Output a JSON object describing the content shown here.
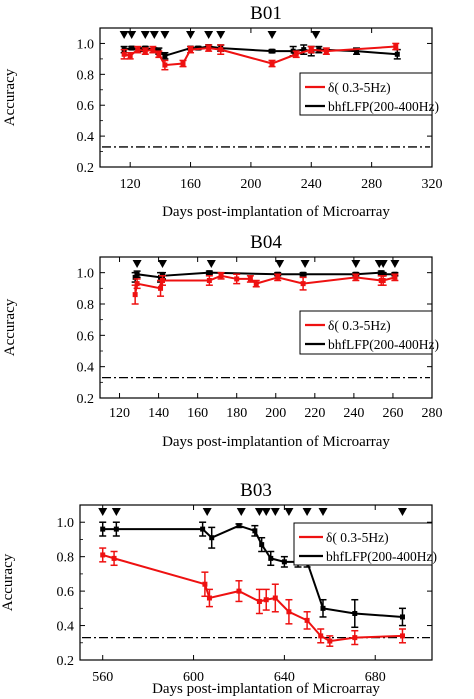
{
  "chart_data": [
    {
      "type": "line",
      "title": "B01",
      "xlabel": "Days post-implantation of Microarray",
      "ylabel": "Accuracy",
      "xlim": [
        100,
        320
      ],
      "ylim": [
        0.2,
        1.1
      ],
      "xticks": [
        120,
        160,
        200,
        240,
        280,
        320
      ],
      "yticks": [
        0.2,
        0.4,
        0.6,
        0.8,
        1.0
      ],
      "chance_level": 0.33,
      "legend": {
        "placement": "right-middle",
        "entries": [
          "δ(  0.3-5Hz)",
          "bhfLFP(200-400Hz)"
        ]
      },
      "markers_x": [
        116,
        121,
        130,
        136,
        143,
        160,
        172,
        180,
        214,
        243
      ],
      "series": [
        {
          "name": "δ(  0.3-5Hz)",
          "color": "#ee1111",
          "x": [
            116,
            120,
            125,
            130,
            135,
            139,
            143,
            155,
            160,
            172,
            180,
            214,
            230,
            240,
            250,
            296
          ],
          "y": [
            0.93,
            0.92,
            0.96,
            0.95,
            0.96,
            0.93,
            0.86,
            0.87,
            0.96,
            0.97,
            0.96,
            0.87,
            0.93,
            0.96,
            0.95,
            0.98
          ],
          "err": [
            0.03,
            0.02,
            0.02,
            0.02,
            0.02,
            0.02,
            0.03,
            0.02,
            0.02,
            0.02,
            0.03,
            0.02,
            0.02,
            0.02,
            0.02,
            0.02
          ]
        },
        {
          "name": "bhfLFP(200-400Hz)",
          "color": "#000000",
          "x": [
            116,
            121,
            127,
            130,
            136,
            139,
            143,
            160,
            165,
            172,
            180,
            214,
            228,
            235,
            240,
            245,
            270,
            297
          ],
          "y": [
            0.96,
            0.97,
            0.96,
            0.97,
            0.96,
            0.95,
            0.92,
            0.97,
            0.97,
            0.98,
            0.97,
            0.95,
            0.95,
            0.96,
            0.95,
            0.96,
            0.95,
            0.93
          ],
          "err": [
            0.02,
            0.01,
            0.01,
            0.01,
            0.01,
            0.02,
            0.02,
            0.01,
            0.01,
            0.01,
            0.02,
            0.01,
            0.03,
            0.03,
            0.03,
            0.02,
            0.02,
            0.03
          ]
        }
      ]
    },
    {
      "type": "line",
      "title": "B04",
      "xlabel": "Days post-implatantion of Microarray",
      "ylabel": "Accuracy",
      "xlim": [
        110,
        280
      ],
      "ylim": [
        0.2,
        1.1
      ],
      "xticks": [
        120,
        140,
        160,
        180,
        200,
        220,
        240,
        260,
        280
      ],
      "yticks": [
        0.2,
        0.4,
        0.6,
        0.8,
        1.0
      ],
      "chance_level": 0.33,
      "legend": {
        "placement": "right-middle",
        "entries": [
          "δ(  0.3-5Hz)",
          "bhfLFP(200-400Hz)"
        ]
      },
      "markers_x": [
        129,
        142,
        167,
        202,
        215,
        241,
        253,
        255,
        261
      ],
      "series": [
        {
          "name": "δ(  0.3-5Hz)",
          "color": "#ee1111",
          "x": [
            128,
            129,
            141,
            142,
            166,
            172,
            180,
            187,
            190,
            201,
            214,
            241,
            254,
            255,
            261
          ],
          "y": [
            0.86,
            0.93,
            0.9,
            0.95,
            0.95,
            0.98,
            0.96,
            0.96,
            0.93,
            0.97,
            0.93,
            0.97,
            0.95,
            0.95,
            0.97
          ],
          "err": [
            0.06,
            0.03,
            0.05,
            0.03,
            0.03,
            0.02,
            0.03,
            0.02,
            0.02,
            0.02,
            0.04,
            0.02,
            0.03,
            0.03,
            0.02
          ]
        },
        {
          "name": "bhfLFP(200-400Hz)",
          "color": "#000000",
          "x": [
            128,
            129,
            141,
            142,
            166,
            201,
            214,
            241,
            254,
            255,
            261
          ],
          "y": [
            0.97,
            0.99,
            0.97,
            0.98,
            1.0,
            0.99,
            0.99,
            0.99,
            1.0,
            0.99,
            0.99
          ],
          "err": [
            0.03,
            0.02,
            0.03,
            0.02,
            0.01,
            0.01,
            0.01,
            0.01,
            0.01,
            0.01,
            0.01
          ]
        }
      ]
    },
    {
      "type": "line",
      "title": "B03",
      "xlabel": "Days post-implantation of Microarray",
      "ylabel": "Accuracy",
      "xlim": [
        550,
        705
      ],
      "ylim": [
        0.2,
        1.1
      ],
      "xticks": [
        560,
        600,
        640,
        680
      ],
      "yticks": [
        0.2,
        0.4,
        0.6,
        0.8,
        1.0
      ],
      "chance_level": 0.33,
      "legend": {
        "placement": "top-right",
        "entries": [
          "δ(  0.3-5Hz)",
          "bhfLFP(200-400Hz)"
        ]
      },
      "markers_x": [
        560,
        566,
        606,
        621,
        629,
        632,
        636,
        642,
        650,
        657,
        692
      ],
      "series": [
        {
          "name": "δ(  0.3-5Hz)",
          "color": "#ee1111",
          "x": [
            560,
            565,
            605,
            607,
            620,
            629,
            632,
            636,
            642,
            650,
            656,
            660,
            671,
            692
          ],
          "y": [
            0.81,
            0.79,
            0.64,
            0.56,
            0.6,
            0.54,
            0.55,
            0.56,
            0.48,
            0.43,
            0.34,
            0.31,
            0.33,
            0.34
          ],
          "err": [
            0.04,
            0.04,
            0.07,
            0.05,
            0.06,
            0.07,
            0.06,
            0.08,
            0.07,
            0.05,
            0.04,
            0.03,
            0.04,
            0.04
          ]
        },
        {
          "name": "bhfLFP(200-400Hz)",
          "color": "#000000",
          "x": [
            560,
            566,
            604,
            608,
            620,
            627,
            630,
            634,
            640,
            646,
            650,
            657,
            671,
            692
          ],
          "y": [
            0.96,
            0.96,
            0.96,
            0.91,
            0.98,
            0.95,
            0.87,
            0.79,
            0.77,
            0.77,
            0.77,
            0.5,
            0.47,
            0.45
          ],
          "err": [
            0.04,
            0.04,
            0.04,
            0.06,
            0.01,
            0.03,
            0.04,
            0.04,
            0.03,
            0.03,
            0.03,
            0.05,
            0.08,
            0.05
          ]
        }
      ]
    }
  ]
}
